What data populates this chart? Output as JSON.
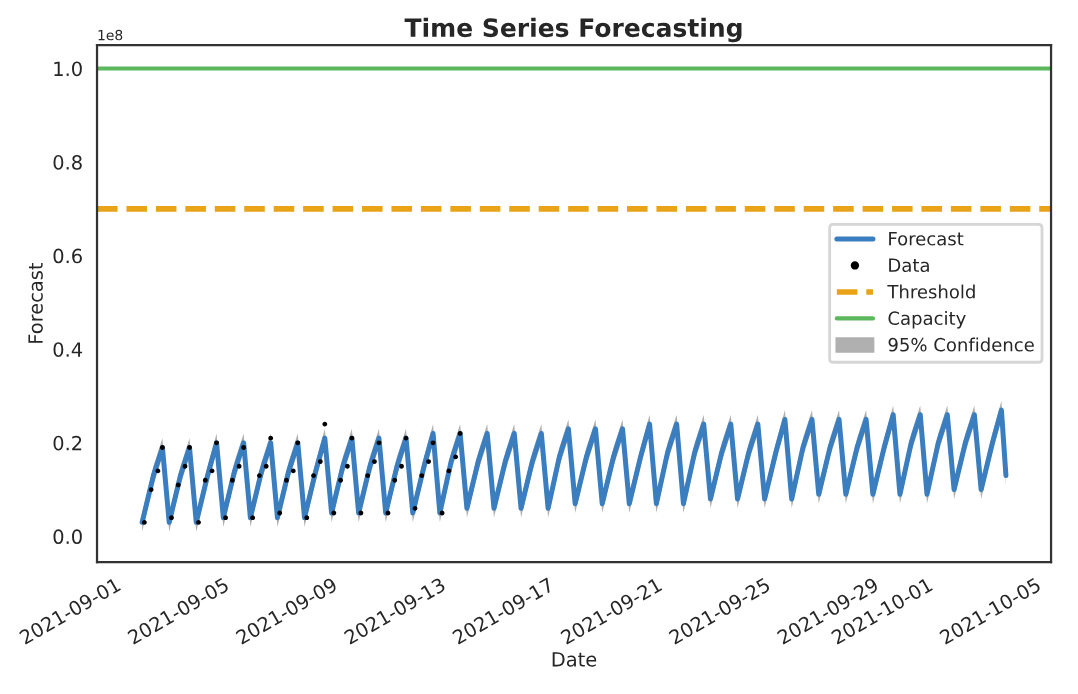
{
  "chart_data": {
    "type": "line",
    "title": "Time Series Forecasting",
    "xlabel": "Date",
    "ylabel": "Forecast",
    "xlim": [
      "2021-08-31T08:00",
      "2021-10-05T14:00"
    ],
    "xticks": [
      "2021-09-01",
      "2021-09-05",
      "2021-09-09",
      "2021-09-13",
      "2021-09-17",
      "2021-09-21",
      "2021-09-25",
      "2021-09-29",
      "2021-10-01",
      "2021-10-05"
    ],
    "ylim": [
      -0.055,
      1.05
    ],
    "yticks": [
      {
        "value": 0,
        "label": "0.0"
      },
      0.2,
      0.4,
      0.6,
      0.8,
      {
        "value": 1,
        "label": "1.0"
      }
    ],
    "annotations": [
      "1e8"
    ],
    "grid": false,
    "legend": "right",
    "series": [
      {
        "name": "Forecast",
        "color": "#3a7ebf",
        "line_style": "solid",
        "x": [
          "2021-09-02T00:00",
          "2021-09-02T10:00",
          "2021-09-02T18:00",
          "2021-09-03T00:00",
          "2021-09-03T10:00",
          "2021-09-03T18:00",
          "2021-09-04T00:00",
          "2021-09-04T10:00",
          "2021-09-04T18:00",
          "2021-09-05T00:00",
          "2021-09-05T10:00",
          "2021-09-05T18:00",
          "2021-09-06T00:00",
          "2021-09-06T10:00",
          "2021-09-06T18:00",
          "2021-09-07T00:00",
          "2021-09-07T10:00",
          "2021-09-07T18:00",
          "2021-09-08T00:00",
          "2021-09-08T10:00",
          "2021-09-08T18:00",
          "2021-09-09T00:00",
          "2021-09-09T10:00",
          "2021-09-09T18:00",
          "2021-09-10T00:00",
          "2021-09-10T10:00",
          "2021-09-10T18:00",
          "2021-09-11T00:00",
          "2021-09-11T10:00",
          "2021-09-11T18:00",
          "2021-09-12T00:00",
          "2021-09-12T10:00",
          "2021-09-12T18:00",
          "2021-09-13T00:00",
          "2021-09-13T10:00",
          "2021-09-13T18:00",
          "2021-09-14T00:00",
          "2021-09-14T10:00",
          "2021-09-14T18:00",
          "2021-09-15T00:00",
          "2021-09-15T10:00",
          "2021-09-15T18:00",
          "2021-09-16T00:00",
          "2021-09-16T10:00",
          "2021-09-16T18:00",
          "2021-09-17T00:00",
          "2021-09-17T10:00",
          "2021-09-17T18:00",
          "2021-09-18T00:00",
          "2021-09-18T10:00",
          "2021-09-18T18:00",
          "2021-09-19T00:00",
          "2021-09-19T10:00",
          "2021-09-19T18:00",
          "2021-09-20T00:00",
          "2021-09-20T10:00",
          "2021-09-20T18:00",
          "2021-09-21T00:00",
          "2021-09-21T10:00",
          "2021-09-21T18:00",
          "2021-09-22T00:00",
          "2021-09-22T10:00",
          "2021-09-22T18:00",
          "2021-09-23T00:00",
          "2021-09-23T10:00",
          "2021-09-23T18:00",
          "2021-09-24T00:00",
          "2021-09-24T10:00",
          "2021-09-24T18:00",
          "2021-09-25T00:00",
          "2021-09-25T10:00",
          "2021-09-25T18:00",
          "2021-09-26T00:00",
          "2021-09-26T10:00",
          "2021-09-26T18:00",
          "2021-09-27T00:00",
          "2021-09-27T10:00",
          "2021-09-27T18:00",
          "2021-09-28T00:00",
          "2021-09-28T10:00",
          "2021-09-28T18:00",
          "2021-09-29T00:00",
          "2021-09-29T10:00",
          "2021-09-29T18:00",
          "2021-09-30T00:00",
          "2021-09-30T10:00",
          "2021-09-30T18:00",
          "2021-10-01T00:00",
          "2021-10-01T10:00",
          "2021-10-01T18:00",
          "2021-10-02T00:00",
          "2021-10-02T10:00",
          "2021-10-02T18:00",
          "2021-10-03T00:00",
          "2021-10-03T10:00",
          "2021-10-03T18:00",
          "2021-10-03T22:00"
        ],
        "values": [
          0.03,
          0.13,
          0.19,
          0.03,
          0.13,
          0.19,
          0.03,
          0.13,
          0.2,
          0.04,
          0.14,
          0.2,
          0.04,
          0.14,
          0.2,
          0.04,
          0.14,
          0.2,
          0.04,
          0.14,
          0.21,
          0.05,
          0.15,
          0.21,
          0.05,
          0.15,
          0.21,
          0.05,
          0.15,
          0.21,
          0.05,
          0.15,
          0.22,
          0.05,
          0.16,
          0.22,
          0.06,
          0.16,
          0.22,
          0.06,
          0.16,
          0.22,
          0.06,
          0.16,
          0.22,
          0.06,
          0.17,
          0.23,
          0.07,
          0.17,
          0.23,
          0.07,
          0.17,
          0.23,
          0.07,
          0.17,
          0.24,
          0.07,
          0.18,
          0.24,
          0.07,
          0.18,
          0.24,
          0.08,
          0.18,
          0.24,
          0.08,
          0.18,
          0.24,
          0.08,
          0.18,
          0.25,
          0.08,
          0.19,
          0.25,
          0.09,
          0.19,
          0.25,
          0.09,
          0.19,
          0.25,
          0.09,
          0.19,
          0.26,
          0.09,
          0.2,
          0.26,
          0.09,
          0.2,
          0.26,
          0.1,
          0.2,
          0.26,
          0.1,
          0.2,
          0.27,
          0.13
        ],
        "lower": [
          0.01,
          0.11,
          0.17,
          0.01,
          0.11,
          0.17,
          0.01,
          0.11,
          0.18,
          0.02,
          0.12,
          0.18,
          0.02,
          0.12,
          0.18,
          0.02,
          0.12,
          0.18,
          0.02,
          0.12,
          0.19,
          0.03,
          0.13,
          0.19,
          0.03,
          0.13,
          0.19,
          0.03,
          0.13,
          0.19,
          0.03,
          0.13,
          0.2,
          0.03,
          0.14,
          0.2,
          0.04,
          0.14,
          0.2,
          0.04,
          0.14,
          0.2,
          0.04,
          0.14,
          0.2,
          0.04,
          0.15,
          0.21,
          0.05,
          0.15,
          0.21,
          0.05,
          0.15,
          0.21,
          0.05,
          0.15,
          0.22,
          0.05,
          0.16,
          0.22,
          0.05,
          0.16,
          0.22,
          0.06,
          0.16,
          0.22,
          0.06,
          0.16,
          0.22,
          0.06,
          0.16,
          0.23,
          0.06,
          0.17,
          0.23,
          0.07,
          0.17,
          0.23,
          0.07,
          0.17,
          0.23,
          0.07,
          0.17,
          0.24,
          0.07,
          0.18,
          0.24,
          0.07,
          0.18,
          0.24,
          0.08,
          0.18,
          0.24,
          0.08,
          0.18,
          0.25,
          0.11
        ],
        "upper": [
          0.05,
          0.15,
          0.21,
          0.05,
          0.15,
          0.21,
          0.05,
          0.15,
          0.22,
          0.06,
          0.16,
          0.22,
          0.06,
          0.16,
          0.22,
          0.06,
          0.16,
          0.22,
          0.06,
          0.16,
          0.23,
          0.07,
          0.17,
          0.23,
          0.07,
          0.17,
          0.23,
          0.07,
          0.17,
          0.23,
          0.07,
          0.17,
          0.24,
          0.07,
          0.18,
          0.24,
          0.08,
          0.18,
          0.24,
          0.08,
          0.18,
          0.24,
          0.08,
          0.18,
          0.24,
          0.08,
          0.19,
          0.25,
          0.09,
          0.19,
          0.25,
          0.09,
          0.19,
          0.25,
          0.09,
          0.19,
          0.26,
          0.09,
          0.2,
          0.26,
          0.09,
          0.2,
          0.26,
          0.1,
          0.2,
          0.26,
          0.1,
          0.2,
          0.26,
          0.1,
          0.2,
          0.27,
          0.1,
          0.21,
          0.27,
          0.11,
          0.21,
          0.27,
          0.11,
          0.21,
          0.27,
          0.11,
          0.21,
          0.28,
          0.11,
          0.22,
          0.28,
          0.11,
          0.22,
          0.28,
          0.12,
          0.22,
          0.28,
          0.12,
          0.22,
          0.29,
          0.15
        ]
      },
      {
        "name": "Data",
        "type": "scatter",
        "color": "#000000",
        "marker": "circle",
        "x": [
          "2021-09-02T02:00",
          "2021-09-02T08:00",
          "2021-09-02T14:00",
          "2021-09-02T18:00",
          "2021-09-03T02:00",
          "2021-09-03T08:00",
          "2021-09-03T14:00",
          "2021-09-03T18:00",
          "2021-09-04T02:00",
          "2021-09-04T08:00",
          "2021-09-04T14:00",
          "2021-09-04T18:00",
          "2021-09-05T02:00",
          "2021-09-05T08:00",
          "2021-09-05T14:00",
          "2021-09-05T18:00",
          "2021-09-06T02:00",
          "2021-09-06T08:00",
          "2021-09-06T14:00",
          "2021-09-06T18:00",
          "2021-09-07T02:00",
          "2021-09-07T08:00",
          "2021-09-07T14:00",
          "2021-09-07T18:00",
          "2021-09-08T02:00",
          "2021-09-08T08:00",
          "2021-09-08T14:00",
          "2021-09-08T18:00",
          "2021-09-09T02:00",
          "2021-09-09T08:00",
          "2021-09-09T14:00",
          "2021-09-09T18:00",
          "2021-09-10T02:00",
          "2021-09-10T08:00",
          "2021-09-10T14:00",
          "2021-09-10T18:00",
          "2021-09-11T02:00",
          "2021-09-11T08:00",
          "2021-09-11T14:00",
          "2021-09-11T18:00",
          "2021-09-12T02:00",
          "2021-09-12T08:00",
          "2021-09-12T14:00",
          "2021-09-12T18:00",
          "2021-09-13T02:00",
          "2021-09-13T08:00",
          "2021-09-13T14:00",
          "2021-09-13T18:00"
        ],
        "values": [
          0.03,
          0.1,
          0.14,
          0.19,
          0.04,
          0.11,
          0.15,
          0.19,
          0.03,
          0.12,
          0.14,
          0.2,
          0.04,
          0.12,
          0.15,
          0.19,
          0.04,
          0.13,
          0.15,
          0.21,
          0.05,
          0.12,
          0.14,
          0.2,
          0.04,
          0.13,
          0.16,
          0.24,
          0.05,
          0.12,
          0.15,
          0.21,
          0.05,
          0.13,
          0.16,
          0.2,
          0.05,
          0.12,
          0.15,
          0.21,
          0.06,
          0.13,
          0.16,
          0.2,
          0.05,
          0.14,
          0.17,
          0.22
        ]
      },
      {
        "name": "95% Confidence",
        "type": "area",
        "color": "#b0b0b0"
      }
    ],
    "ref_lines": [
      {
        "axis": "y",
        "value": 0.7,
        "label": "Threshold",
        "color": "#e8a317",
        "line_style": "dashed"
      },
      {
        "axis": "y",
        "value": 1.0,
        "label": "Capacity",
        "color": "#5cb85c",
        "line_style": "solid"
      }
    ]
  }
}
